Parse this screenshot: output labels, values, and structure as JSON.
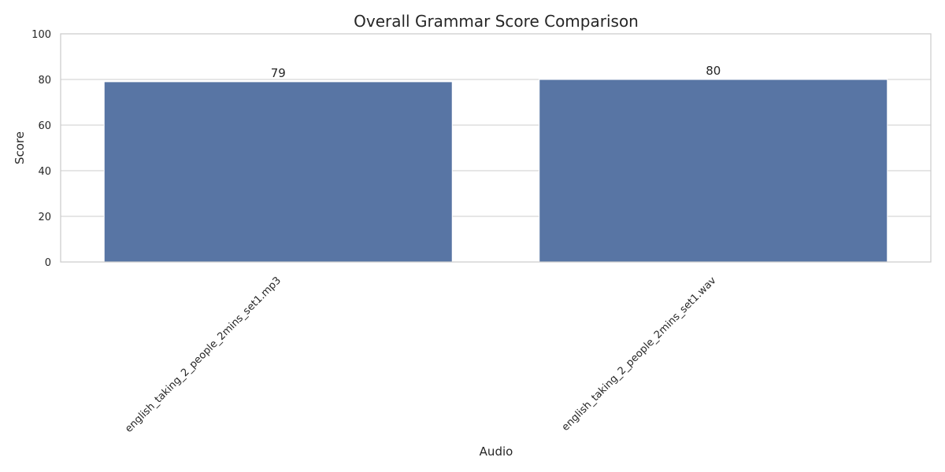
{
  "chart_data": {
    "type": "bar",
    "title": "Overall Grammar Score Comparison",
    "xlabel": "Audio",
    "ylabel": "Score",
    "categories": [
      "english_taking_2_people_2mins_set1.mp3",
      "english_taking_2_people_2mins_set1.wav"
    ],
    "values": [
      79,
      80
    ],
    "data_labels": [
      "79",
      "80"
    ],
    "ylim": [
      0,
      100
    ],
    "yticks": [
      0,
      20,
      40,
      60,
      80,
      100
    ],
    "ytick_labels": [
      "0",
      "20",
      "40",
      "60",
      "80",
      "100"
    ],
    "grid": true,
    "bar_color": "#5875a4",
    "grid_color": "#cccccc",
    "text_color": "#262626"
  }
}
